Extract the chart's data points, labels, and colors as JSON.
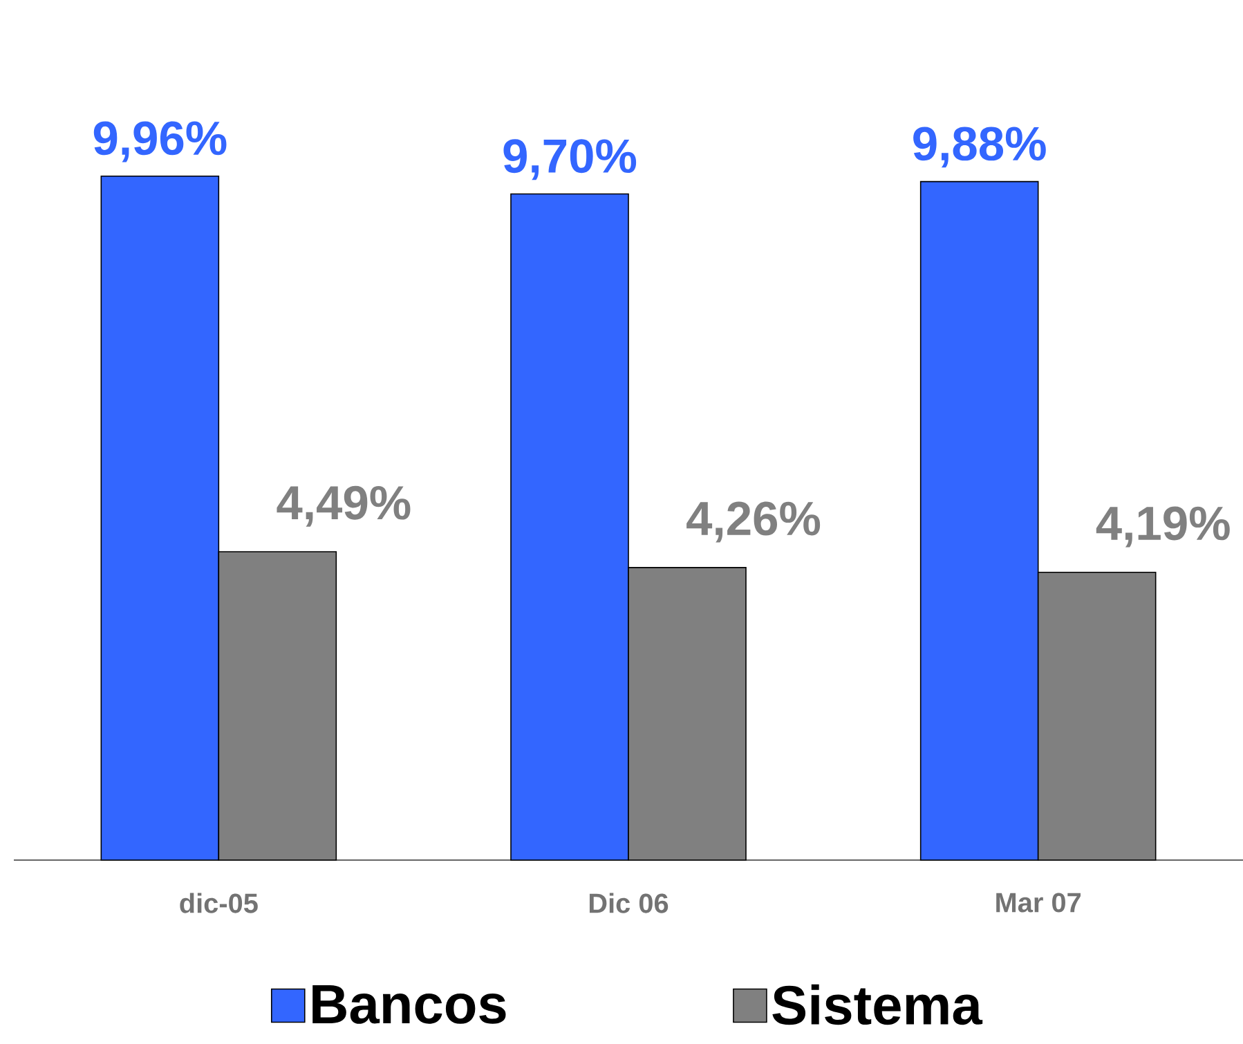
{
  "chart_data": {
    "type": "bar",
    "categories": [
      "dic-05",
      "Dic 06",
      "Mar 07"
    ],
    "series": [
      {
        "name": "Bancos",
        "color": "#3366ff",
        "values": [
          9.96,
          9.7,
          9.88
        ],
        "value_labels": [
          "9,96%",
          "9,70%",
          "9,88%"
        ]
      },
      {
        "name": "Sistema",
        "color": "#808080",
        "values": [
          4.49,
          4.26,
          4.19
        ],
        "value_labels": [
          "4,49%",
          "4,26%",
          "4,19%"
        ]
      }
    ],
    "tick_labels": "x",
    "legend": "bottom"
  }
}
